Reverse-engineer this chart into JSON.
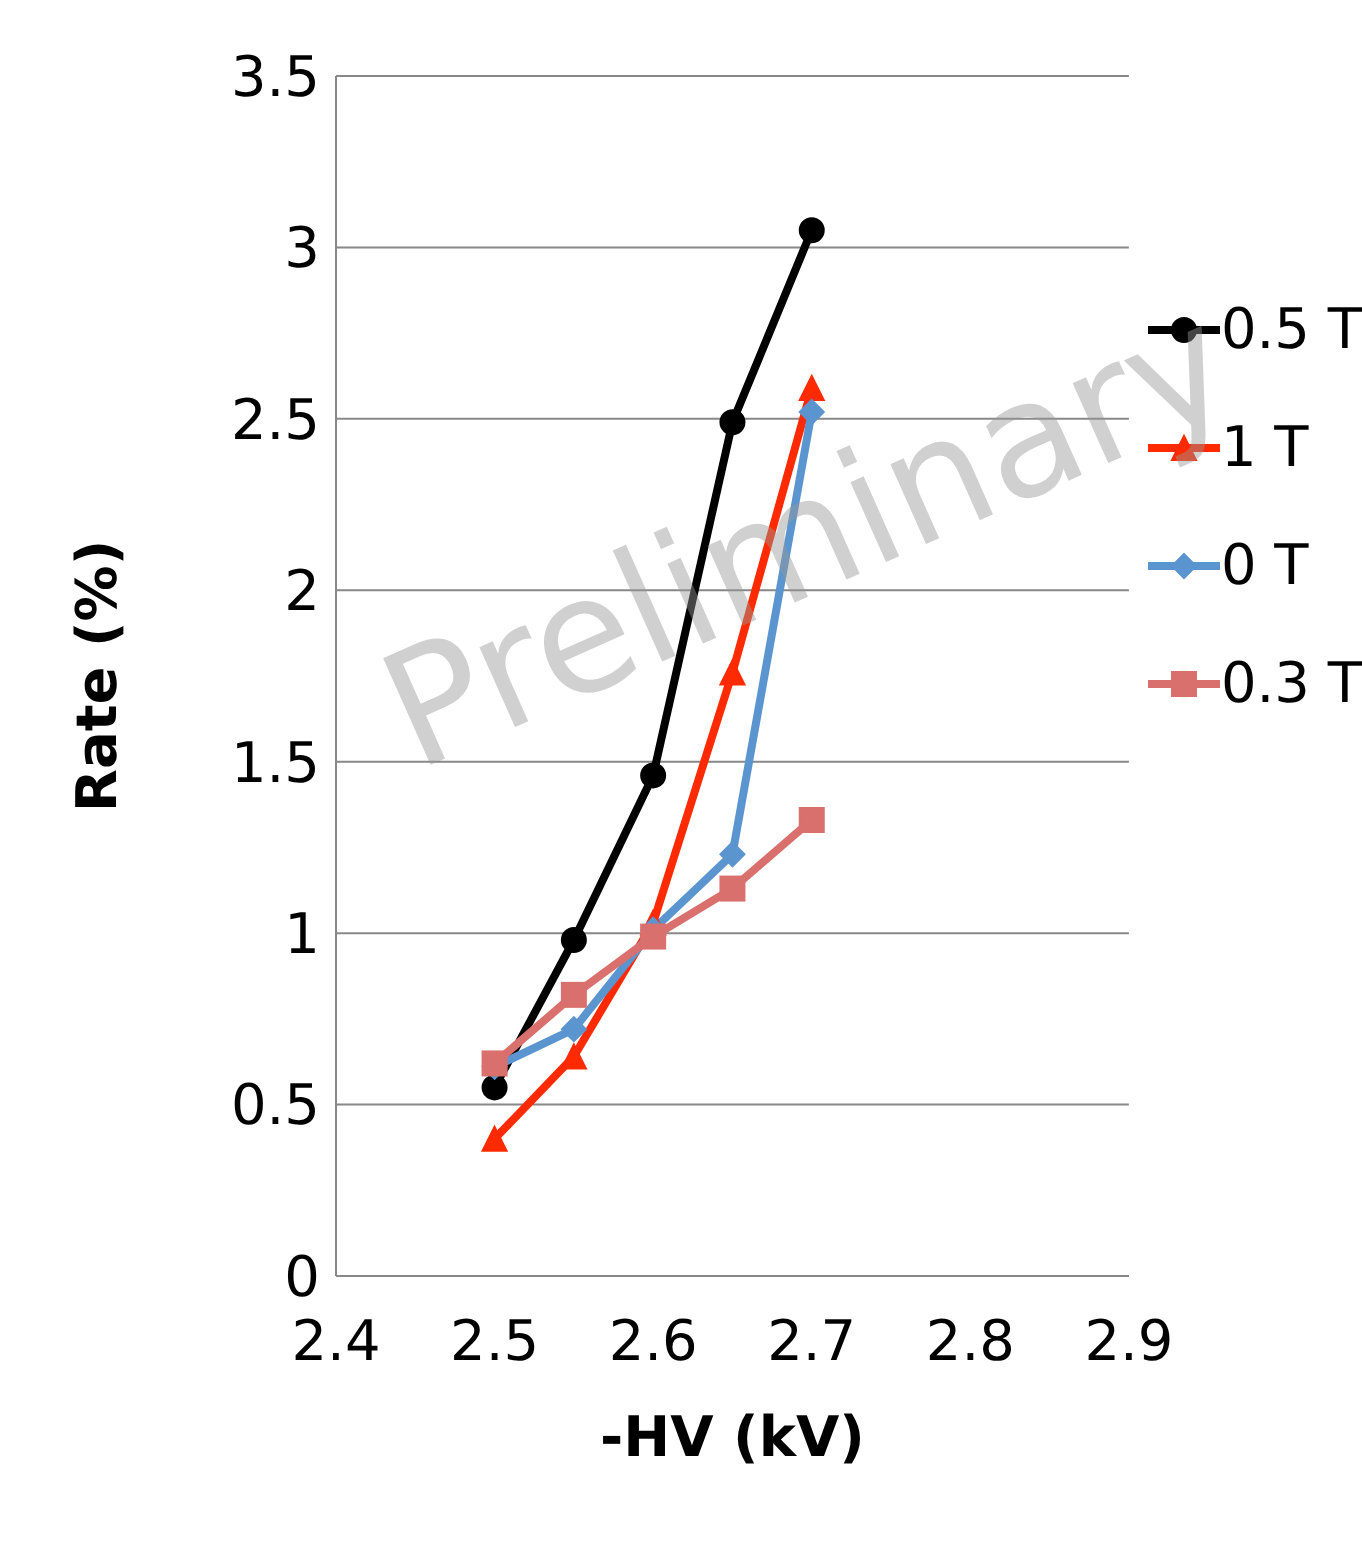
{
  "chart_data": {
    "type": "line",
    "xlabel": "-HV (kV)",
    "ylabel": "Rate (%)",
    "annotations": [
      "Preliminary"
    ],
    "x": [
      2.5,
      2.55,
      2.6,
      2.65,
      2.7
    ],
    "series": [
      {
        "name": "0.5 T",
        "color": "#000000",
        "marker": "circle",
        "values": [
          0.55,
          0.98,
          1.46,
          2.49,
          3.05
        ]
      },
      {
        "name": "1 T",
        "color": "#ff2a00",
        "marker": "triangle",
        "values": [
          0.4,
          0.64,
          1.03,
          1.76,
          2.59
        ]
      },
      {
        "name": "0 T",
        "color": "#5b95d0",
        "marker": "diamond",
        "values": [
          0.61,
          0.72,
          1.01,
          1.23,
          2.52
        ]
      },
      {
        "name": "0.3 T",
        "color": "#d9706d",
        "marker": "square",
        "values": [
          0.62,
          0.82,
          0.99,
          1.13,
          1.33
        ]
      }
    ],
    "xlim": [
      2.4,
      2.9
    ],
    "xticks": [
      2.4,
      2.5,
      2.6,
      2.7,
      2.8,
      2.9
    ],
    "ylim": [
      0,
      3.5
    ],
    "yticks": [
      0,
      0.5,
      1,
      1.5,
      2,
      2.5,
      3,
      3.5
    ],
    "grid": "y",
    "legend": "right",
    "line_style": "solid"
  }
}
